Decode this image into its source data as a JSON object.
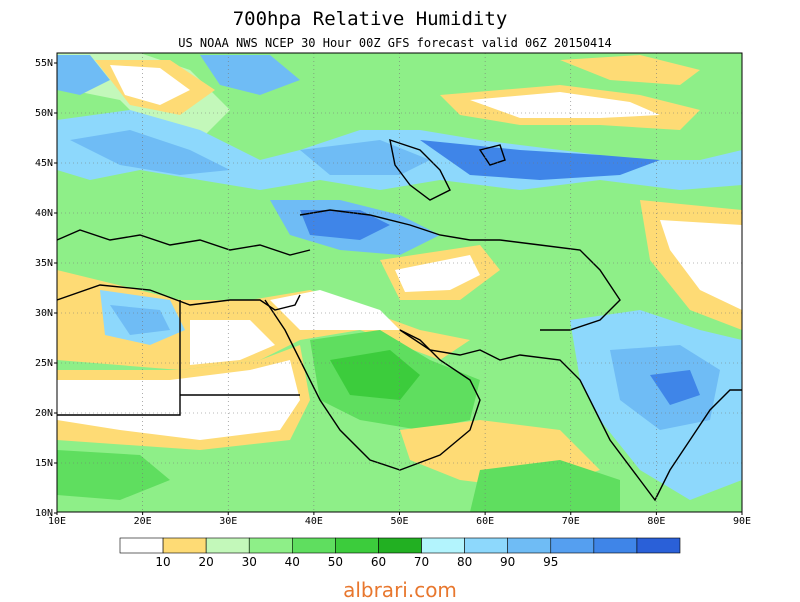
{
  "header": {
    "title": "700hpa Relative Humidity",
    "subtitle": "US NOAA NWS NCEP 30 Hour 00Z GFS forecast valid 06Z 20150414"
  },
  "axes": {
    "lat_labels": [
      "55N",
      "50N",
      "45N",
      "40N",
      "35N",
      "30N",
      "25N",
      "20N",
      "15N",
      "10N"
    ],
    "lon_labels": [
      "10E",
      "20E",
      "30E",
      "40E",
      "50E",
      "60E",
      "70E",
      "80E",
      "90E"
    ]
  },
  "legend": {
    "colors": [
      "#ffffff",
      "#fedb75",
      "#c3f8ba",
      "#8eef88",
      "#5fde5f",
      "#3ccc3c",
      "#22b022",
      "#b3f4fd",
      "#8dd8fc",
      "#6fbcf5",
      "#559ff0",
      "#3f85e8",
      "#2a60d8"
    ],
    "labels": [
      "10",
      "20",
      "30",
      "40",
      "50",
      "60",
      "70",
      "80",
      "90",
      "95"
    ]
  },
  "watermark": "albrari.com"
}
